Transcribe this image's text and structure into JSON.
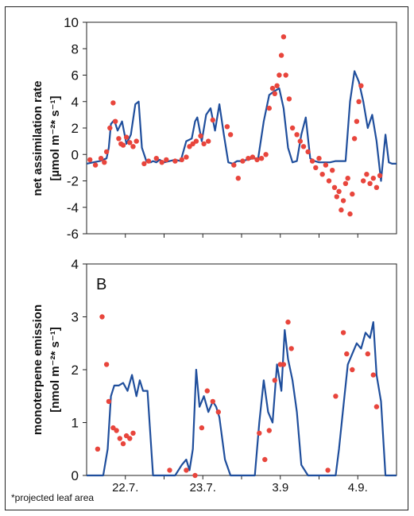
{
  "footnote": "*projected leaf area",
  "colors": {
    "model_line": "#1f4e9c",
    "measured_points": "#e8453c"
  },
  "chart_data": [
    {
      "type": "line",
      "panel_label": "",
      "ylabel": "net assimilation rate",
      "ylabel_unit": "[µmol m⁻²* s⁻¹]",
      "ylim": [
        -6,
        10
      ],
      "yticks": [
        "-6",
        "-4",
        "-2",
        "0",
        "2",
        "4",
        "6",
        "8",
        "10"
      ],
      "xlim": [
        0,
        28
      ],
      "series": [
        {
          "kind": "line",
          "x": [
            0,
            0.6,
            1.2,
            1.8,
            2.0,
            2.2,
            2.5,
            2.8,
            3.2,
            3.6,
            4.0,
            4.4,
            4.7,
            5.0,
            5.4,
            5.8,
            6.0,
            6.3,
            6.6,
            7.0,
            7.5,
            8.0,
            8.5,
            9.0,
            9.5,
            9.8,
            10.0,
            10.4,
            10.8,
            11.2,
            11.6,
            12.0,
            12.4,
            12.8,
            13.2,
            13.6,
            14.0,
            14.5,
            15.0,
            15.5,
            16.0,
            16.5,
            17.0,
            17.4,
            17.8,
            18.2,
            18.6,
            19.0,
            19.4,
            19.8,
            20.2,
            20.6,
            21.0,
            21.5,
            22.0,
            22.5,
            23.0,
            23.4,
            23.8,
            24.2,
            24.6,
            25.0,
            25.4,
            25.8,
            26.2,
            26.6,
            27.0,
            27.3,
            27.6,
            28.0
          ],
          "y": [
            -0.7,
            -0.6,
            -0.5,
            -0.3,
            0.5,
            2.3,
            2.6,
            1.8,
            2.5,
            0.8,
            1.5,
            3.8,
            4.0,
            0.5,
            -0.5,
            -0.6,
            -0.5,
            -0.6,
            -0.4,
            -0.6,
            -0.5,
            -0.4,
            -0.5,
            1.0,
            1.2,
            2.5,
            2.8,
            1.0,
            3.0,
            3.5,
            1.8,
            3.8,
            1.5,
            -0.6,
            -0.7,
            -0.5,
            -0.5,
            -0.4,
            -0.3,
            -0.3,
            2.5,
            4.5,
            4.8,
            5.0,
            3.5,
            0.5,
            -0.6,
            -0.5,
            1.5,
            2.8,
            -0.3,
            -0.5,
            -0.6,
            -0.6,
            -0.6,
            -0.5,
            -0.5,
            -0.5,
            4.0,
            6.3,
            5.5,
            4.0,
            2.0,
            3.0,
            1.0,
            -2.0,
            1.5,
            -0.6,
            -0.7,
            -0.7
          ]
        },
        {
          "kind": "scatter",
          "x": [
            0.3,
            0.8,
            1.3,
            1.6,
            1.8,
            2.1,
            2.4,
            2.6,
            2.9,
            3.1,
            3.3,
            3.6,
            3.9,
            4.2,
            4.5,
            5.2,
            5.6,
            6.3,
            6.8,
            7.2,
            8.0,
            8.6,
            9.0,
            9.3,
            9.6,
            9.9,
            10.3,
            10.6,
            11.0,
            11.4,
            12.7,
            13.0,
            13.3,
            13.7,
            14.1,
            14.6,
            15.0,
            15.4,
            15.8,
            16.2,
            16.5,
            16.8,
            17.0,
            17.2,
            17.4,
            17.6,
            17.8,
            18.0,
            18.3,
            18.6,
            19.0,
            19.3,
            19.6,
            20.0,
            20.4,
            20.7,
            21.0,
            21.3,
            21.6,
            21.9,
            22.2,
            22.4,
            22.6,
            22.8,
            23.0,
            23.2,
            23.4,
            23.6,
            23.8,
            24.0,
            24.2,
            24.4,
            24.6,
            24.8,
            25.0,
            25.3,
            25.6,
            25.9,
            26.2,
            26.5
          ],
          "y": [
            -0.4,
            -0.8,
            -0.3,
            -0.6,
            0.2,
            2.0,
            3.9,
            2.5,
            1.2,
            0.8,
            0.7,
            1.3,
            0.9,
            0.6,
            1.0,
            -0.7,
            -0.5,
            -0.3,
            -0.6,
            -0.4,
            -0.5,
            -0.4,
            -0.2,
            0.6,
            0.8,
            1.0,
            1.4,
            0.8,
            1.0,
            2.6,
            2.1,
            1.5,
            -0.8,
            -1.8,
            -0.5,
            -0.3,
            -0.2,
            -0.4,
            -0.3,
            0.0,
            3.5,
            5.0,
            4.6,
            5.2,
            6.0,
            7.5,
            8.9,
            6.0,
            4.2,
            2.0,
            1.5,
            1.0,
            0.6,
            0.2,
            -0.5,
            -1.0,
            -0.3,
            -1.5,
            -0.8,
            -2.0,
            -1.2,
            -2.5,
            -3.2,
            -2.8,
            -4.2,
            -3.5,
            -2.2,
            -1.8,
            -4.5,
            -3.0,
            1.2,
            2.5,
            4.0,
            5.2,
            -2.0,
            -1.5,
            -2.2,
            -1.8,
            -2.5,
            -1.6
          ]
        }
      ]
    },
    {
      "type": "line",
      "panel_label": "B",
      "ylabel": "monoterpene emission",
      "ylabel_unit": "[nmol m⁻²* s⁻¹]",
      "ylim": [
        0,
        4
      ],
      "yticks": [
        "0",
        "1",
        "2",
        "3",
        "4"
      ],
      "xlim": [
        0,
        28
      ],
      "categories": [
        "22.7.",
        "23.7.",
        "3.9",
        "4.9."
      ],
      "category_positions": [
        3.5,
        10.5,
        17.5,
        24.5
      ],
      "series": [
        {
          "kind": "line",
          "x": [
            0,
            1.5,
            1.9,
            2.2,
            2.5,
            2.9,
            3.3,
            3.7,
            4.1,
            4.5,
            4.8,
            5.1,
            5.5,
            6.0,
            7.0,
            7.5,
            8.0,
            8.6,
            9.0,
            9.3,
            9.6,
            9.9,
            10.2,
            10.6,
            11.0,
            11.4,
            11.7,
            12.0,
            12.5,
            13.0,
            14.0,
            14.5,
            15.2,
            15.6,
            16.0,
            16.4,
            16.8,
            17.2,
            17.6,
            17.9,
            18.2,
            18.6,
            19.0,
            19.4,
            20.0,
            21.0,
            22.0,
            22.5,
            22.8,
            23.2,
            23.6,
            24.0,
            24.4,
            24.8,
            25.2,
            25.6,
            25.9,
            26.2,
            26.6,
            27.0,
            28.0
          ],
          "y": [
            0,
            0,
            0.5,
            1.5,
            1.7,
            1.7,
            1.75,
            1.6,
            1.9,
            1.5,
            1.8,
            1.6,
            1.6,
            0,
            0,
            0,
            0,
            0.2,
            0.3,
            0.1,
            0.5,
            2.0,
            1.3,
            1.5,
            1.2,
            1.4,
            1.3,
            1.1,
            0.3,
            0,
            0,
            0,
            0,
            1.0,
            1.8,
            1.2,
            1.0,
            2.1,
            1.6,
            2.75,
            2.2,
            1.8,
            1.2,
            0.2,
            0,
            0,
            0,
            0,
            0.5,
            1.3,
            2.1,
            2.3,
            2.5,
            2.4,
            2.7,
            2.6,
            2.9,
            1.9,
            1.4,
            0,
            0
          ]
        },
        {
          "kind": "scatter",
          "x": [
            1.0,
            1.4,
            1.8,
            2.0,
            2.4,
            2.7,
            3.0,
            3.3,
            3.6,
            3.9,
            4.2,
            7.5,
            9.0,
            9.8,
            10.4,
            10.9,
            11.4,
            11.9,
            15.6,
            16.1,
            16.5,
            17.0,
            17.5,
            17.8,
            18.2,
            18.5,
            21.8,
            22.5,
            23.2,
            23.5,
            24.0,
            25.4,
            25.9,
            26.2
          ],
          "y": [
            0.5,
            3.0,
            2.1,
            1.4,
            0.9,
            0.85,
            0.7,
            0.6,
            0.75,
            0.7,
            0.8,
            0.1,
            0.1,
            0.0,
            0.9,
            1.6,
            1.4,
            1.2,
            0.8,
            0.3,
            0.85,
            1.8,
            2.1,
            2.1,
            2.9,
            2.4,
            0.1,
            1.5,
            2.7,
            2.3,
            2.0,
            2.3,
            1.9,
            1.3
          ]
        }
      ]
    }
  ]
}
